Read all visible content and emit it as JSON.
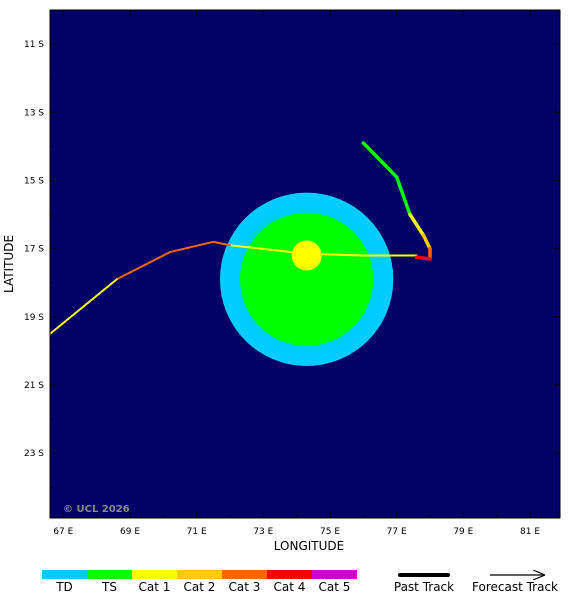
{
  "colors": {
    "ocean": "#000066",
    "td": "#00ccff",
    "ts": "#00ff00",
    "cat1": "#ffff00",
    "cat2": "#ffcc00",
    "cat3": "#ff6600",
    "cat4": "#ff0000",
    "cat5": "#cc00cc"
  },
  "axes": {
    "x_title": "LONGITUDE",
    "y_title": "LATITUDE",
    "x_range": [
      66.6,
      81.9
    ],
    "y_range": [
      -10.0,
      -24.9
    ],
    "x_ticks": [
      {
        "value": 67,
        "label": "67 E"
      },
      {
        "value": 69,
        "label": "69 E"
      },
      {
        "value": 71,
        "label": "71 E"
      },
      {
        "value": 73,
        "label": "73 E"
      },
      {
        "value": 75,
        "label": "75 E"
      },
      {
        "value": 77,
        "label": "77 E"
      },
      {
        "value": 79,
        "label": "79 E"
      },
      {
        "value": 81,
        "label": "81 E"
      }
    ],
    "y_ticks": [
      {
        "value": -11,
        "label": "11 S"
      },
      {
        "value": -13,
        "label": "13 S"
      },
      {
        "value": -15,
        "label": "15 S"
      },
      {
        "value": -17,
        "label": "17 S"
      },
      {
        "value": -19,
        "label": "19 S"
      },
      {
        "value": -21,
        "label": "21 S"
      },
      {
        "value": -23,
        "label": "23 S"
      }
    ]
  },
  "copyright": "© UCL 2026",
  "wind_field": {
    "center": {
      "lon": 74.3,
      "lat": -17.9
    },
    "td_radius_deg": 2.6,
    "ts_radius_deg": 2.0,
    "cat1_center": {
      "lon": 74.3,
      "lat": -17.2
    },
    "cat1_radius_deg": 0.45
  },
  "tracks": {
    "past": [
      {
        "lon": 76.0,
        "lat": -13.9,
        "cat": "ts"
      },
      {
        "lon": 77.0,
        "lat": -14.9,
        "cat": "ts"
      },
      {
        "lon": 77.4,
        "lat": -16.0,
        "cat": "cat1"
      },
      {
        "lon": 77.8,
        "lat": -16.6,
        "cat": "cat2"
      },
      {
        "lon": 78.0,
        "lat": -17.0,
        "cat": "cat3"
      },
      {
        "lon": 78.0,
        "lat": -17.3,
        "cat": "cat4"
      },
      {
        "lon": 77.6,
        "lat": -17.25,
        "cat": "cat3"
      }
    ],
    "forecast": [
      {
        "lon": 77.6,
        "lat": -17.2,
        "cat": "cat1"
      },
      {
        "lon": 76.0,
        "lat": -17.2,
        "cat": "cat1"
      },
      {
        "lon": 74.3,
        "lat": -17.15,
        "cat": "cat1"
      },
      {
        "lon": 72.0,
        "lat": -16.9,
        "cat": "cat3"
      },
      {
        "lon": 71.5,
        "lat": -16.8,
        "cat": "cat3"
      },
      {
        "lon": 70.2,
        "lat": -17.1,
        "cat": "cat3"
      },
      {
        "lon": 68.6,
        "lat": -17.9,
        "cat": "cat1"
      },
      {
        "lon": 66.6,
        "lat": -19.5,
        "cat": "cat1"
      }
    ]
  },
  "legend": {
    "categories": [
      {
        "key": "td",
        "label": "TD"
      },
      {
        "key": "ts",
        "label": "TS"
      },
      {
        "key": "cat1",
        "label": "Cat 1"
      },
      {
        "key": "cat2",
        "label": "Cat 2"
      },
      {
        "key": "cat3",
        "label": "Cat 3"
      },
      {
        "key": "cat4",
        "label": "Cat 4"
      },
      {
        "key": "cat5",
        "label": "Cat 5"
      }
    ],
    "past_track_label": "Past Track",
    "forecast_track_label": "Forecast Track"
  }
}
